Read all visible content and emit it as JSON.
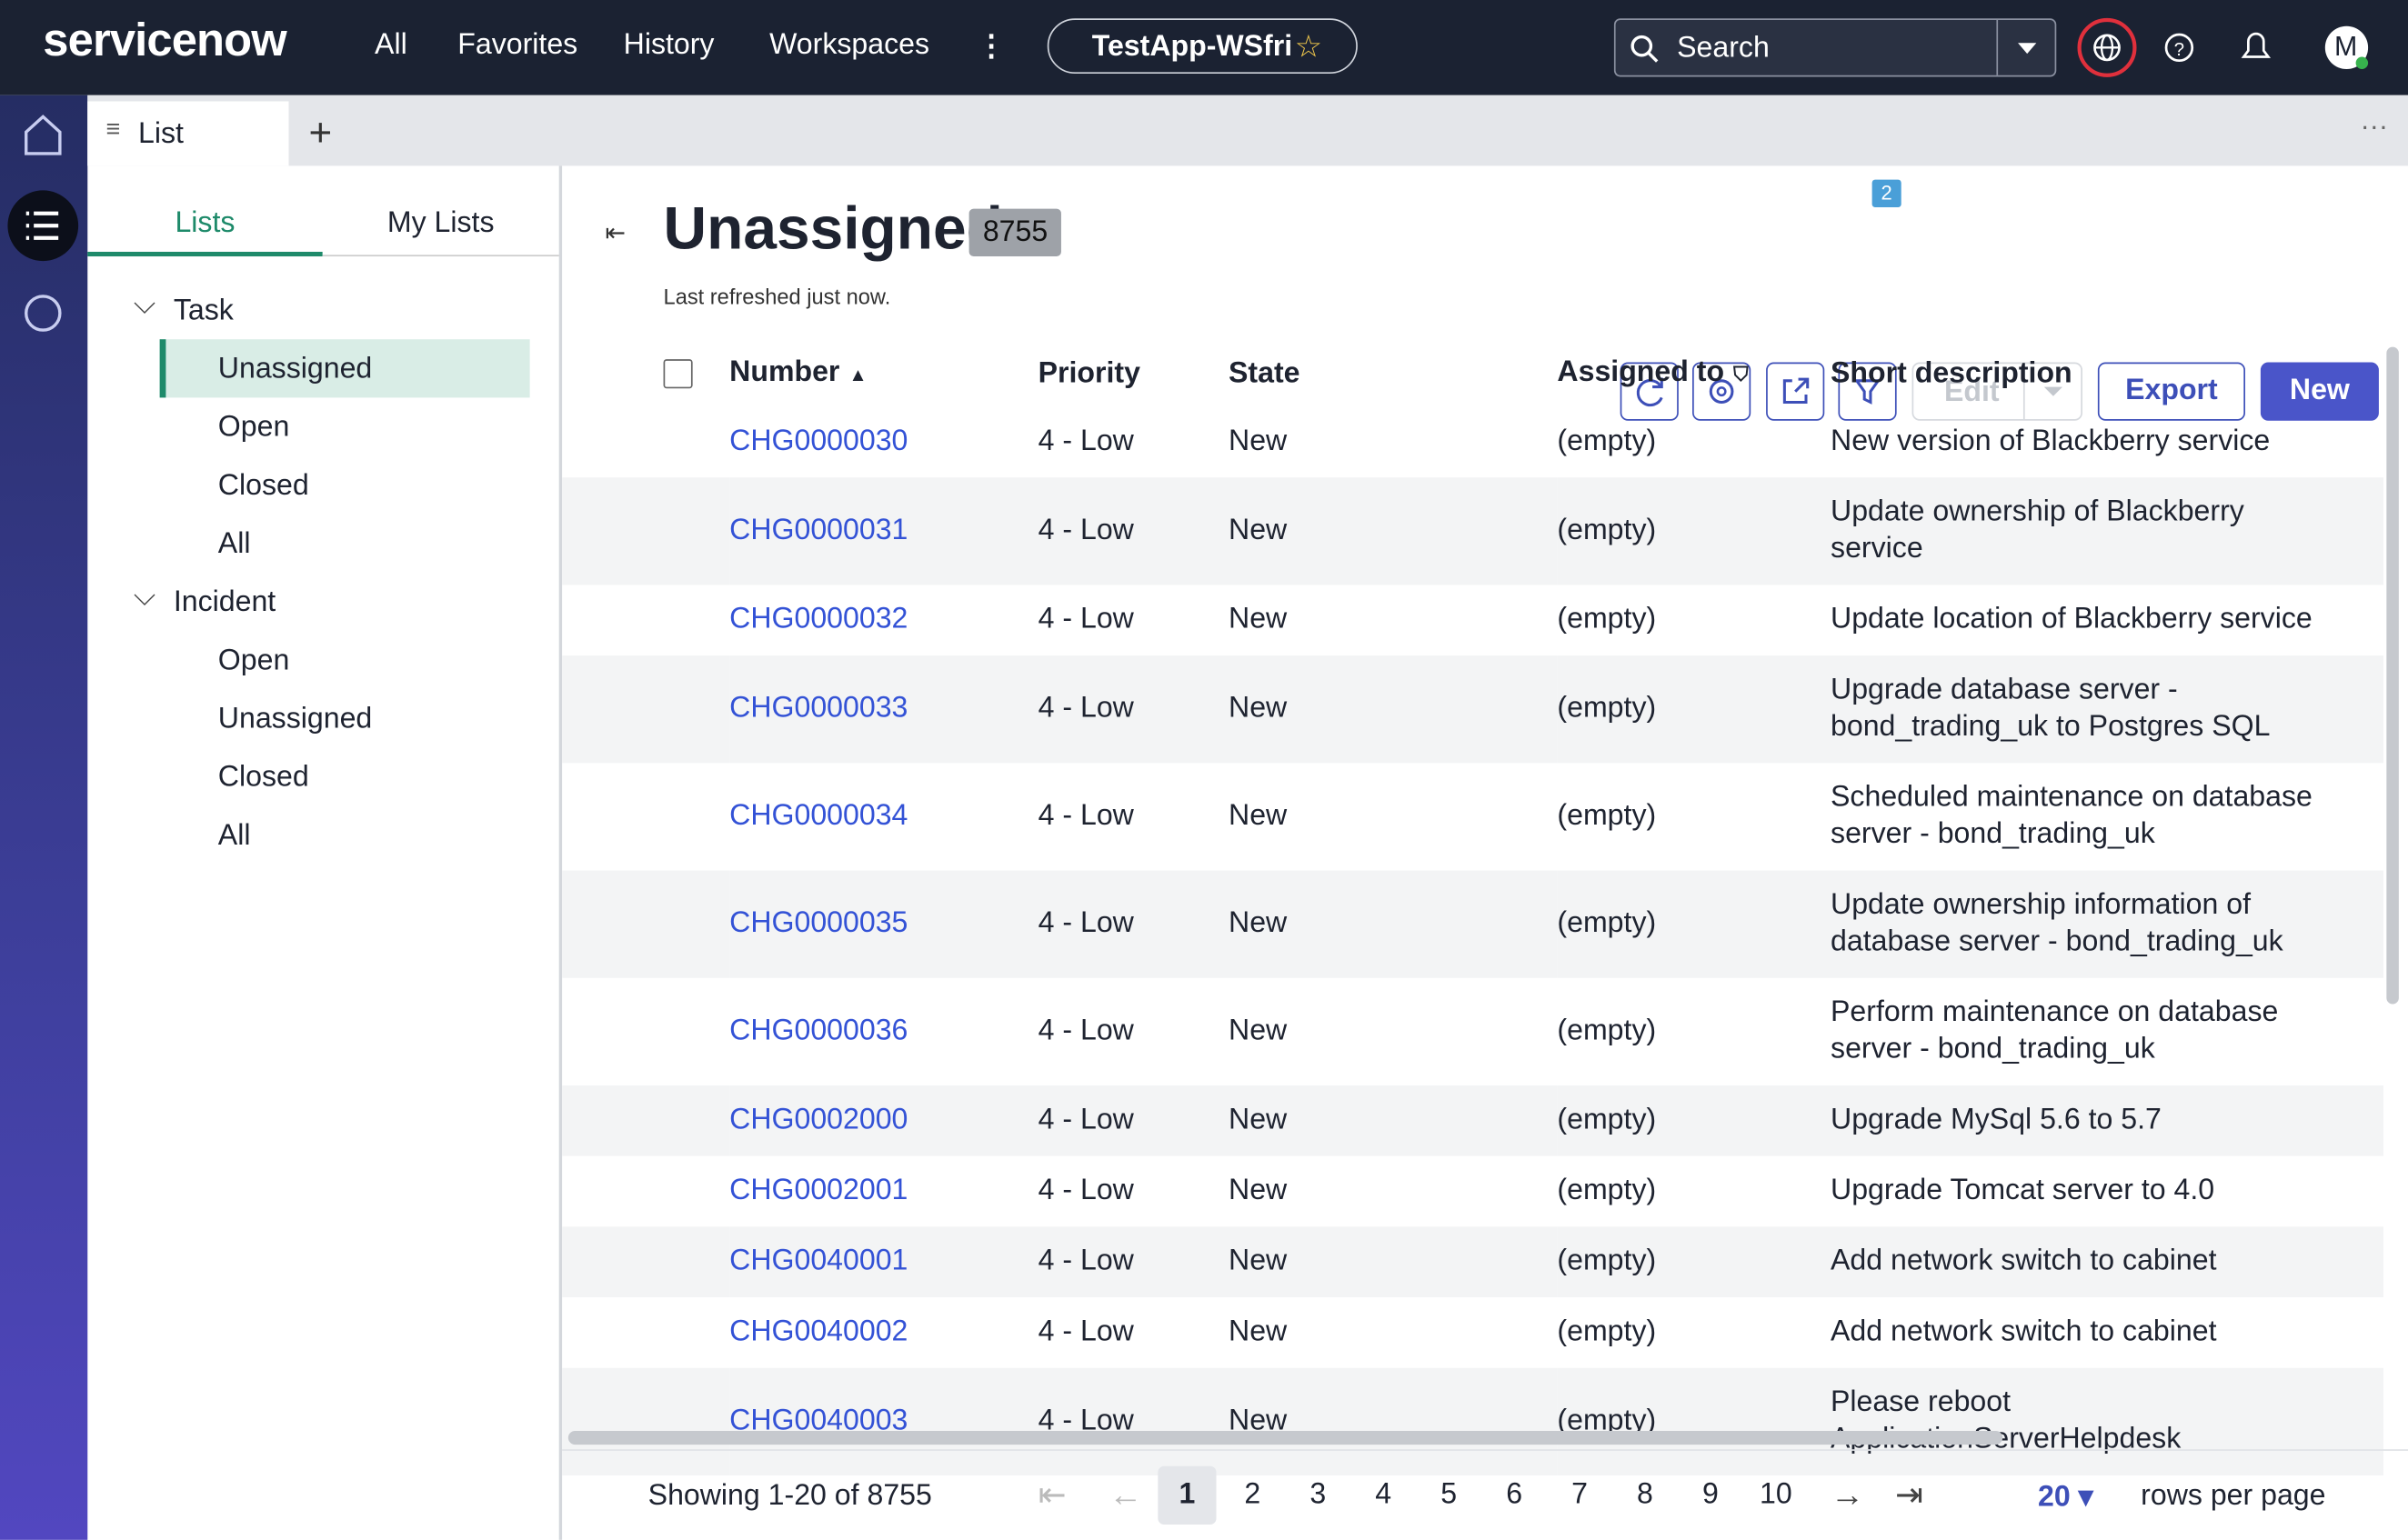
{
  "header": {
    "logo": "servicenow",
    "nav": [
      "All",
      "Favorites",
      "History",
      "Workspaces"
    ],
    "app": "TestApp-WSfri",
    "search": "Search",
    "avatar": "M"
  },
  "tabs": {
    "active": "List"
  },
  "sidebar": {
    "tabs": [
      "Lists",
      "My Lists"
    ],
    "groups": [
      {
        "name": "Task",
        "items": [
          "Unassigned",
          "Open",
          "Closed",
          "All"
        ]
      },
      {
        "name": "Incident",
        "items": [
          "Open",
          "Unassigned",
          "Closed",
          "All"
        ]
      }
    ]
  },
  "list": {
    "title": "Unassigned",
    "count": 8755,
    "refreshed": "Last refreshed just now.",
    "filter_count": 2,
    "buttons": {
      "edit": "Edit",
      "export": "Export",
      "new": "New"
    },
    "columns": [
      "Number",
      "Priority",
      "State",
      "Assigned to",
      "Short description"
    ],
    "rows": [
      [
        "CHG0000030",
        "4 - Low",
        "New",
        "(empty)",
        "New version of Blackberry service"
      ],
      [
        "CHG0000031",
        "4 - Low",
        "New",
        "(empty)",
        "Update ownership of Blackberry service"
      ],
      [
        "CHG0000032",
        "4 - Low",
        "New",
        "(empty)",
        "Update location of Blackberry service"
      ],
      [
        "CHG0000033",
        "4 - Low",
        "New",
        "(empty)",
        "Upgrade database server - bond_trading_uk to Postgres SQL"
      ],
      [
        "CHG0000034",
        "4 - Low",
        "New",
        "(empty)",
        "Scheduled maintenance on database server - bond_trading_uk"
      ],
      [
        "CHG0000035",
        "4 - Low",
        "New",
        "(empty)",
        "Update ownership information of database server - bond_trading_uk"
      ],
      [
        "CHG0000036",
        "4 - Low",
        "New",
        "(empty)",
        "Perform maintenance on database server - bond_trading_uk"
      ],
      [
        "CHG0002000",
        "4 - Low",
        "New",
        "(empty)",
        "Upgrade MySql 5.6 to 5.7"
      ],
      [
        "CHG0002001",
        "4 - Low",
        "New",
        "(empty)",
        "Upgrade Tomcat server to 4.0"
      ],
      [
        "CHG0040001",
        "4 - Low",
        "New",
        "(empty)",
        "Add network switch to cabinet"
      ],
      [
        "CHG0040002",
        "4 - Low",
        "New",
        "(empty)",
        "Add network switch to cabinet"
      ],
      [
        "CHG0040003",
        "4 - Low",
        "New",
        "(empty)",
        "Please reboot ApplicationServerHelpdesk"
      ]
    ]
  },
  "pagination": {
    "showing": "Showing 1-20 of 8755",
    "pages": [
      1,
      2,
      3,
      4,
      5,
      6,
      7,
      8,
      9,
      10
    ],
    "rows_per_page_value": 20,
    "rows_per_page_label": "rows per page"
  }
}
